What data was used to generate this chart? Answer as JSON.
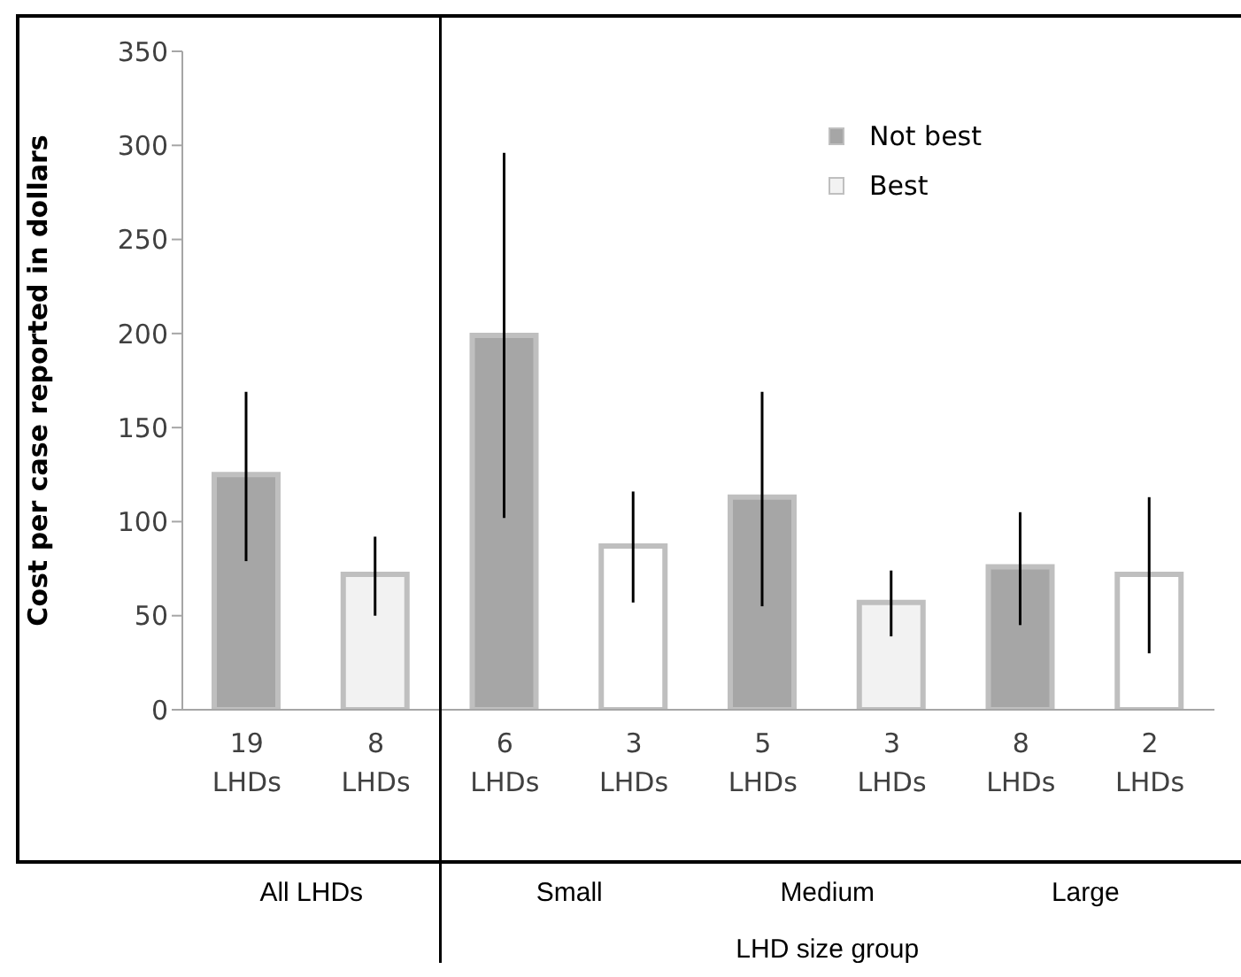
{
  "chart_data": {
    "type": "bar",
    "ylabel": "Cost per case reported in dollars",
    "categories": [
      "19 LHDs",
      "8 LHDs",
      "6 LHDs",
      "3 LHDs",
      "5 LHDs",
      "3 LHDs",
      "8 LHDs",
      "2 LHDs"
    ],
    "annotations": [
      "All LHDs",
      "Small",
      "Medium",
      "Large",
      "LHD size group"
    ],
    "series": [
      {
        "name": "Not best",
        "color": "#a6a6a6",
        "values": [
          125,
          null,
          199,
          null,
          113,
          null,
          76,
          null
        ],
        "errors": [
          [
            79,
            169
          ],
          null,
          [
            102,
            296
          ],
          null,
          [
            55,
            169
          ],
          null,
          [
            45,
            105
          ],
          null
        ]
      },
      {
        "name": "Best",
        "color": "#f2f2f2",
        "colors": [
          null,
          "#f2f2f2",
          null,
          "#ffffff",
          null,
          "#f2f2f2",
          null,
          "#ffffff"
        ],
        "values": [
          null,
          72,
          null,
          87,
          null,
          57,
          null,
          72
        ],
        "errors": [
          null,
          [
            50,
            92
          ],
          null,
          [
            57,
            116
          ],
          null,
          [
            39,
            74
          ],
          null,
          [
            30,
            113
          ]
        ]
      }
    ],
    "ylim": [
      0,
      350
    ],
    "yticks": [
      0,
      50,
      100,
      150,
      200,
      250,
      300,
      350
    ],
    "grid": false,
    "legend": "top right"
  }
}
